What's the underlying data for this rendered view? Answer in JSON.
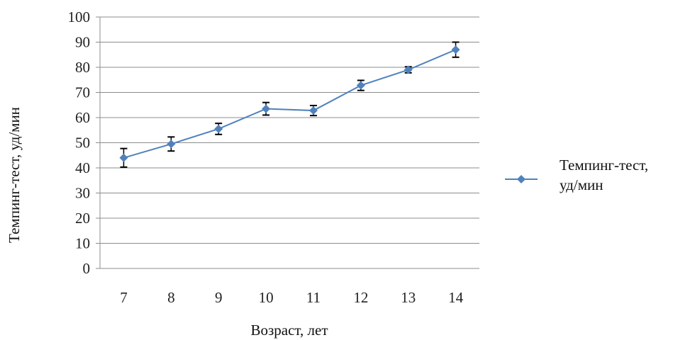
{
  "chart_data": {
    "type": "line",
    "title": "",
    "xlabel": "Возраст, лет",
    "ylabel": "Темпинг-тест, уд/мин",
    "categories": [
      "7",
      "8",
      "9",
      "10",
      "11",
      "12",
      "13",
      "14"
    ],
    "ylim": [
      0,
      100
    ],
    "yticks": [
      "0",
      "10",
      "20",
      "30",
      "40",
      "50",
      "60",
      "70",
      "80",
      "90",
      "100"
    ],
    "grid": true,
    "legend_position": "right",
    "series": [
      {
        "name": "Темпинг-тест, уд/мин",
        "values": [
          44,
          49.5,
          55.5,
          63.5,
          62.8,
          72.8,
          79,
          87
        ],
        "error": [
          3.7,
          2.8,
          2.2,
          2.5,
          2,
          2,
          1.2,
          3
        ],
        "color": "#4f81bd"
      }
    ]
  },
  "legend": {
    "line1": "Темпинг-тест,",
    "line2": "уд/мин"
  }
}
